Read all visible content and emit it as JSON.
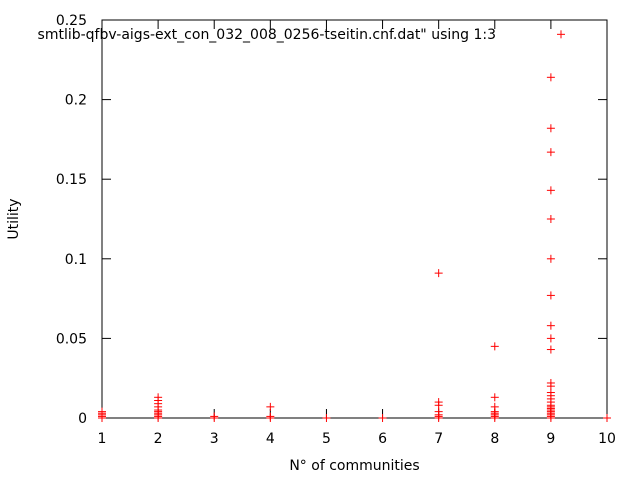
{
  "chart_data": {
    "type": "scatter",
    "legend_entry": "smtlib-qfbv-aigs-ext_con_032_008_0256-tseitin.cnf.dat\" using 1:3",
    "xlabel": "N° of communities",
    "ylabel": "Utility",
    "xlim": [
      1,
      10
    ],
    "ylim": [
      0,
      0.25
    ],
    "x_ticks": [
      1,
      2,
      3,
      4,
      5,
      6,
      7,
      8,
      9,
      10
    ],
    "y_ticks": [
      0,
      0.05,
      0.1,
      0.15,
      0.2,
      0.25
    ],
    "y_tick_labels": [
      "0",
      "0.05",
      "0.1",
      "0.15",
      "0.2",
      "0.25"
    ],
    "grid": false,
    "marker": "+",
    "color": "#ff0000",
    "points": [
      {
        "x": 1,
        "y": 0.0
      },
      {
        "x": 1,
        "y": 0.001
      },
      {
        "x": 1,
        "y": 0.002
      },
      {
        "x": 1,
        "y": 0.003
      },
      {
        "x": 1,
        "y": 0.004
      },
      {
        "x": 2,
        "y": 0.0
      },
      {
        "x": 2,
        "y": 0.001
      },
      {
        "x": 2,
        "y": 0.002
      },
      {
        "x": 2,
        "y": 0.003
      },
      {
        "x": 2,
        "y": 0.004
      },
      {
        "x": 2,
        "y": 0.005
      },
      {
        "x": 2,
        "y": 0.007
      },
      {
        "x": 2,
        "y": 0.009
      },
      {
        "x": 2,
        "y": 0.011
      },
      {
        "x": 2,
        "y": 0.013
      },
      {
        "x": 3,
        "y": 0.0
      },
      {
        "x": 3,
        "y": 0.001
      },
      {
        "x": 4,
        "y": 0.0
      },
      {
        "x": 4,
        "y": 0.001
      },
      {
        "x": 4,
        "y": 0.007
      },
      {
        "x": 5,
        "y": 0.0
      },
      {
        "x": 6,
        "y": 0.0
      },
      {
        "x": 7,
        "y": 0.0
      },
      {
        "x": 7,
        "y": 0.001
      },
      {
        "x": 7,
        "y": 0.002
      },
      {
        "x": 7,
        "y": 0.004
      },
      {
        "x": 7,
        "y": 0.008
      },
      {
        "x": 7,
        "y": 0.01
      },
      {
        "x": 7,
        "y": 0.091
      },
      {
        "x": 8,
        "y": 0.0
      },
      {
        "x": 8,
        "y": 0.001
      },
      {
        "x": 8,
        "y": 0.002
      },
      {
        "x": 8,
        "y": 0.003
      },
      {
        "x": 8,
        "y": 0.004
      },
      {
        "x": 8,
        "y": 0.007
      },
      {
        "x": 8,
        "y": 0.013
      },
      {
        "x": 8,
        "y": 0.045
      },
      {
        "x": 9,
        "y": 0.0
      },
      {
        "x": 9,
        "y": 0.001
      },
      {
        "x": 9,
        "y": 0.002
      },
      {
        "x": 9,
        "y": 0.003
      },
      {
        "x": 9,
        "y": 0.004
      },
      {
        "x": 9,
        "y": 0.005
      },
      {
        "x": 9,
        "y": 0.006
      },
      {
        "x": 9,
        "y": 0.007
      },
      {
        "x": 9,
        "y": 0.008
      },
      {
        "x": 9,
        "y": 0.01
      },
      {
        "x": 9,
        "y": 0.012
      },
      {
        "x": 9,
        "y": 0.014
      },
      {
        "x": 9,
        "y": 0.016
      },
      {
        "x": 9,
        "y": 0.02
      },
      {
        "x": 9,
        "y": 0.022
      },
      {
        "x": 9,
        "y": 0.043
      },
      {
        "x": 9,
        "y": 0.05
      },
      {
        "x": 9,
        "y": 0.058
      },
      {
        "x": 9,
        "y": 0.077
      },
      {
        "x": 9,
        "y": 0.1
      },
      {
        "x": 9,
        "y": 0.125
      },
      {
        "x": 9,
        "y": 0.143
      },
      {
        "x": 9,
        "y": 0.167
      },
      {
        "x": 9,
        "y": 0.182
      },
      {
        "x": 9,
        "y": 0.214
      },
      {
        "x": 10,
        "y": 0.0
      }
    ],
    "legend_sample": {
      "x": 9.18,
      "y": 0.241
    }
  }
}
